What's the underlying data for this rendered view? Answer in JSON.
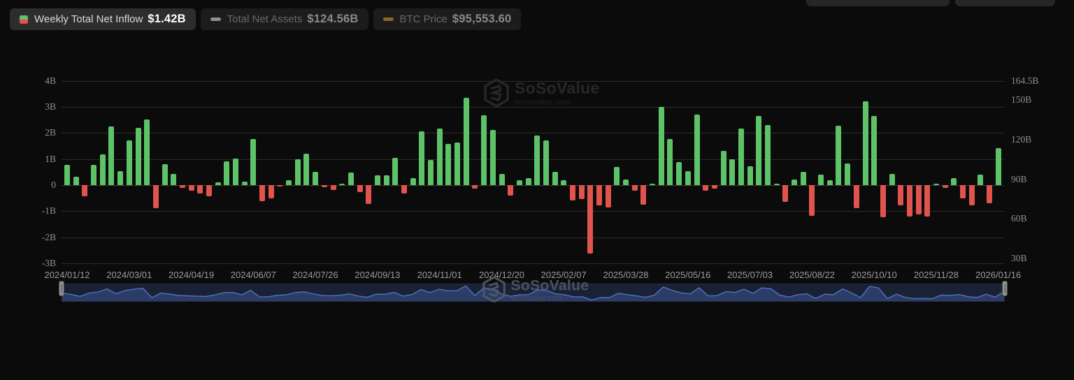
{
  "legend": {
    "items": [
      {
        "label": "Weekly Total Net Inflow",
        "value": "$1.42B",
        "active": true
      },
      {
        "label": "Total Net Assets",
        "value": "$124.56B",
        "active": false
      },
      {
        "label": "BTC Price",
        "value": "$95,553.60",
        "active": false
      }
    ]
  },
  "watermark": {
    "name": "SoSoValue",
    "domain": "sosovalue.com"
  },
  "chart_data": {
    "type": "bar",
    "title": "Weekly Total Net Inflow",
    "series": [
      {
        "name": "Weekly Total Net Inflow",
        "unit": "billions USD",
        "values": [
          0.78,
          0.31,
          -0.43,
          0.78,
          1.17,
          2.25,
          0.54,
          1.71,
          2.19,
          2.51,
          -0.89,
          0.81,
          0.43,
          -0.11,
          -0.21,
          -0.33,
          -0.43,
          0.11,
          0.9,
          1.02,
          0.14,
          1.78,
          -0.62,
          -0.52,
          -0.03,
          0.19,
          1.0,
          1.2,
          0.51,
          -0.09,
          -0.19,
          0.03,
          0.48,
          -0.27,
          -0.72,
          0.37,
          0.37,
          1.04,
          -0.31,
          0.28,
          2.06,
          0.96,
          2.17,
          1.58,
          1.63,
          3.34,
          -0.12,
          2.68,
          2.11,
          0.42,
          -0.4,
          0.18,
          0.26,
          1.91,
          1.71,
          0.52,
          0.19,
          -0.58,
          -0.53,
          -2.62,
          -0.78,
          -0.85,
          0.71,
          0.21,
          -0.22,
          -0.74,
          0.03,
          3.01,
          1.76,
          0.88,
          0.54,
          2.7,
          -0.2,
          -0.14,
          1.31,
          1.0,
          2.16,
          0.73,
          2.66,
          2.32,
          0.05,
          -0.64,
          0.22,
          0.52,
          -1.17,
          0.4,
          0.2,
          2.28,
          0.84,
          -0.89,
          3.21,
          2.66,
          -1.23,
          0.42,
          -0.78,
          -1.2,
          -1.13,
          -1.21,
          0.06,
          -0.11,
          0.27,
          -0.51,
          -0.78,
          0.4,
          -0.69,
          1.42
        ]
      }
    ],
    "x_tick_labels": [
      "2024/01/12",
      "2024/03/01",
      "2024/04/19",
      "2024/06/07",
      "2024/07/26",
      "2024/09/13",
      "2024/11/01",
      "2024/12/20",
      "2025/02/07",
      "2025/03/28",
      "2025/05/16",
      "2025/07/03",
      "2025/08/22",
      "2025/10/10",
      "2025/11/28",
      "2026/01/16"
    ],
    "x_tick_every": 7,
    "left_axis": {
      "tick_labels": [
        "4B",
        "3B",
        "2B",
        "1B",
        "0",
        "-1B",
        "-2B",
        "-3B"
      ],
      "tick_values": [
        4,
        3,
        2,
        1,
        0,
        -1,
        -2,
        -3
      ]
    },
    "right_axis": {
      "tick_labels": [
        "164.5B",
        "150B",
        "120B",
        "90B",
        "60B",
        "30B"
      ],
      "tick_values": [
        164.5,
        150,
        120,
        90,
        60,
        30
      ]
    },
    "ylim": [
      -3.2,
      4.2
    ],
    "grid": true,
    "legend_position": "top-left",
    "colors": {
      "positive": "#5ec269",
      "negative": "#e0544d",
      "grid": "#2c2c2c",
      "zero_line": "#3a3a3a",
      "axis_text": "#8f8f8f",
      "legend_icon_split_top": "#5ec269",
      "legend_icon_split_bottom": "#e0544d",
      "legend_icon_assets": "#8f8f8f",
      "legend_icon_btc": "#8a6b1e",
      "nav_fill": "#2b3d66",
      "nav_line": "#4e6fb8"
    }
  }
}
